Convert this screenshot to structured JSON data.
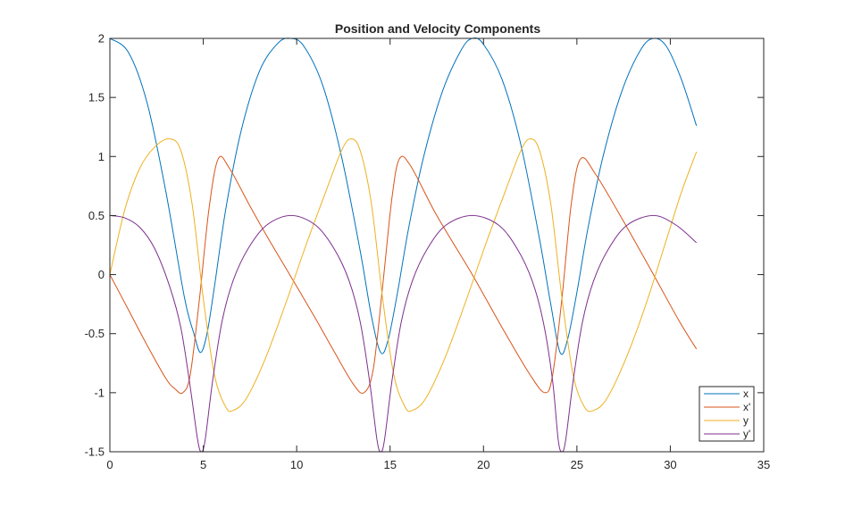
{
  "chart_data": {
    "type": "line",
    "title": "Position and Velocity Components",
    "xlabel": "",
    "ylabel": "",
    "xlim": [
      0,
      35
    ],
    "ylim": [
      -1.5,
      2
    ],
    "x_ticks": [
      0,
      5,
      10,
      15,
      20,
      25,
      30,
      35
    ],
    "x_tick_labels": [
      "0",
      "5",
      "10",
      "15",
      "20",
      "25",
      "30",
      "35"
    ],
    "y_ticks": [
      -1.5,
      -1,
      -0.5,
      0,
      0.5,
      1,
      1.5,
      2
    ],
    "y_tick_labels": [
      "-1.5",
      "-1",
      "-0.5",
      "0",
      "0.5",
      "1",
      "1.5",
      "2"
    ],
    "grid": false,
    "legend_position": "bottom-right",
    "series": [
      {
        "name": "x",
        "color": "#0072BD",
        "x": [
          0,
          1,
          2,
          3,
          4,
          4.5,
          4.85,
          5.2,
          5.6,
          6.2,
          7,
          8,
          9,
          9.7,
          10.4,
          11.4,
          12.4,
          13.4,
          14.0,
          14.5,
          14.9,
          15.4,
          16.0,
          16.8,
          17.8,
          18.8,
          19.4,
          20.0,
          21.0,
          22.0,
          23.0,
          23.6,
          24.1,
          24.5,
          25.0,
          25.6,
          26.4,
          27.4,
          28.4,
          29.1,
          29.8,
          30.6,
          31.4
        ],
        "y": [
          2,
          1.88,
          1.45,
          0.7,
          -0.2,
          -0.5,
          -0.66,
          -0.5,
          -0.1,
          0.55,
          1.2,
          1.72,
          1.96,
          2,
          1.93,
          1.6,
          1.0,
          0.2,
          -0.35,
          -0.66,
          -0.55,
          -0.15,
          0.4,
          1.0,
          1.55,
          1.9,
          2,
          1.95,
          1.65,
          1.1,
          0.3,
          -0.25,
          -0.66,
          -0.55,
          -0.15,
          0.4,
          1.0,
          1.55,
          1.9,
          2,
          1.93,
          1.65,
          1.26
        ]
      },
      {
        "name": "x'",
        "color": "#D95319",
        "x": [
          0,
          1,
          2,
          3,
          3.5,
          3.9,
          4.3,
          4.8,
          5.3,
          5.8,
          6.4,
          7.5,
          8.5,
          9.7,
          11,
          12,
          13,
          13.6,
          14.1,
          14.6,
          15.1,
          15.5,
          16.1,
          17.5,
          19.4,
          21,
          22.5,
          23.3,
          23.7,
          24.2,
          24.7,
          25.2,
          26,
          27.5,
          29.1,
          30.5,
          31.4
        ],
        "y": [
          0,
          -0.3,
          -0.6,
          -0.88,
          -0.97,
          -1.0,
          -0.85,
          -0.2,
          0.55,
          0.98,
          0.9,
          0.58,
          0.3,
          -0.02,
          -0.37,
          -0.65,
          -0.92,
          -1.0,
          -0.8,
          -0.1,
          0.65,
          0.98,
          0.92,
          0.5,
          0,
          -0.45,
          -0.85,
          -1.0,
          -0.85,
          -0.2,
          0.6,
          0.98,
          0.85,
          0.45,
          0,
          -0.4,
          -0.63
        ]
      },
      {
        "name": "y",
        "color": "#EDB120",
        "x": [
          0,
          0.8,
          1.6,
          2.4,
          3.2,
          3.8,
          4.4,
          5.0,
          5.6,
          6.2,
          6.6,
          7.3,
          8.3,
          9.4,
          10.5,
          11.6,
          12.4,
          12.9,
          13.4,
          14.0,
          14.6,
          15.2,
          15.8,
          16.2,
          16.9,
          17.9,
          19.0,
          20.1,
          21.2,
          22.0,
          22.5,
          23.0,
          23.6,
          24.2,
          24.8,
          25.4,
          25.9,
          26.6,
          27.6,
          28.7,
          29.8,
          30.6,
          31.4
        ],
        "y": [
          0,
          0.55,
          0.9,
          1.08,
          1.15,
          1.05,
          0.6,
          -0.2,
          -0.85,
          -1.12,
          -1.15,
          -1.05,
          -0.72,
          -0.25,
          0.25,
          0.72,
          1.05,
          1.15,
          1.05,
          0.6,
          -0.2,
          -0.85,
          -1.12,
          -1.15,
          -1.05,
          -0.72,
          -0.25,
          0.25,
          0.72,
          1.05,
          1.15,
          1.05,
          0.6,
          -0.2,
          -0.85,
          -1.12,
          -1.15,
          -1.05,
          -0.72,
          -0.25,
          0.3,
          0.7,
          1.04
        ]
      },
      {
        "name": "y'",
        "color": "#7E2F8E",
        "x": [
          0,
          0.8,
          1.6,
          2.4,
          3.2,
          3.8,
          4.3,
          4.7,
          4.9,
          5.1,
          5.5,
          6.0,
          6.6,
          7.4,
          8.4,
          9.7,
          11.0,
          12.0,
          12.8,
          13.4,
          13.9,
          14.3,
          14.5,
          14.7,
          15.1,
          15.6,
          16.2,
          17.0,
          18.0,
          19.4,
          20.8,
          21.8,
          22.6,
          23.2,
          23.7,
          24.0,
          24.2,
          24.4,
          24.8,
          25.3,
          25.9,
          26.7,
          27.7,
          29.1,
          30.3,
          31.4
        ],
        "y": [
          0.5,
          0.48,
          0.4,
          0.22,
          -0.1,
          -0.45,
          -0.95,
          -1.4,
          -1.5,
          -1.4,
          -0.9,
          -0.4,
          -0.05,
          0.22,
          0.42,
          0.5,
          0.42,
          0.22,
          -0.05,
          -0.4,
          -0.9,
          -1.4,
          -1.5,
          -1.4,
          -0.9,
          -0.4,
          -0.05,
          0.22,
          0.42,
          0.5,
          0.42,
          0.22,
          -0.05,
          -0.4,
          -0.9,
          -1.4,
          -1.5,
          -1.4,
          -0.9,
          -0.4,
          -0.05,
          0.22,
          0.42,
          0.5,
          0.42,
          0.27
        ]
      }
    ]
  }
}
